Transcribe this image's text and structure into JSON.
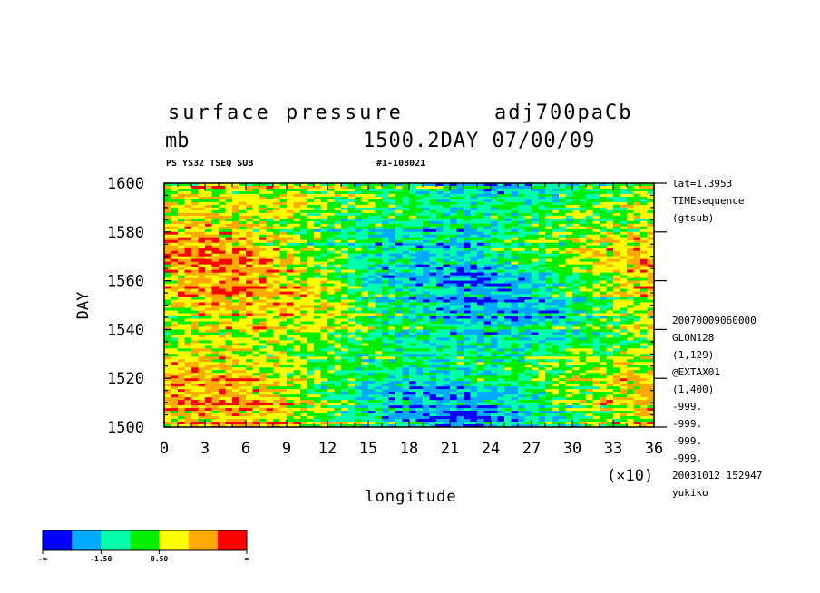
{
  "chart_data": {
    "type": "heatmap",
    "title": "surface pressure",
    "run_id": "adj700paCb",
    "units": "mb",
    "time_label": "1500.2DAY 07/00/09",
    "subtitle_left": "PS YS32 TSEQ SUB",
    "subtitle_right": "#1-108021",
    "xlabel": "longitude",
    "ylabel": "DAY",
    "x_multiplier": "(×10)",
    "xlim": [
      0,
      36
    ],
    "ylim": [
      1500,
      1600
    ],
    "x_ticks": [
      "0",
      "3",
      "6",
      "9",
      "12",
      "15",
      "18",
      "21",
      "24",
      "27",
      "30",
      "33",
      "36"
    ],
    "y_ticks": [
      "1500",
      "1520",
      "1540",
      "1560",
      "1580",
      "1600"
    ],
    "side_info_top": [
      "lat=1.3953",
      "TIMEsequence",
      "(gtsub)"
    ],
    "side_info_bottom": [
      "20070009060000",
      "GLON128",
      "(1,129)",
      "@EXTAX01",
      "(1,400)",
      "-999.",
      "-999.",
      "-999.",
      "-999.",
      "20031012 152947",
      "yukiko"
    ],
    "colorbar": {
      "colors": [
        "#0000ff",
        "#00aaff",
        "#00ffaa",
        "#00ee00",
        "#ffff00",
        "#ffaa00",
        "#ff0000"
      ],
      "labels": [
        "-∞",
        "-1.50",
        "0.50",
        "∞"
      ]
    },
    "pattern_description_values": {
      "low_region_center_lon_x10": [
        16,
        27
      ],
      "high_region_center_lon_x10": [
        0,
        10
      ]
    }
  }
}
